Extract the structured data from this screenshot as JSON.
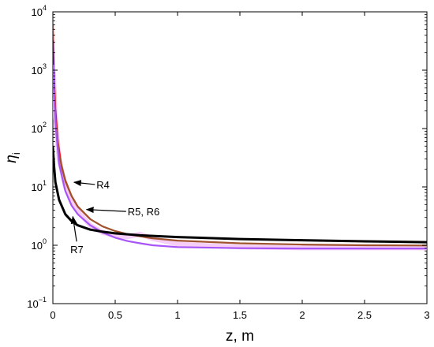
{
  "chart_data": {
    "type": "line",
    "xlabel": "z,  m",
    "ylabel_symbol": "η",
    "ylabel_subscript": "i",
    "xlim": [
      0,
      3
    ],
    "ylim": [
      0.1,
      10000
    ],
    "yscale": "log",
    "grid": false,
    "x_ticks": [
      0,
      0.5,
      1,
      1.5,
      2,
      2.5,
      3
    ],
    "x_tick_labels": [
      "0",
      "0.5",
      "1",
      "1.5",
      "2",
      "2.5",
      "3"
    ],
    "y_ticks": [
      0.1,
      1,
      10,
      100,
      1000,
      10000
    ],
    "y_tick_labels": [
      {
        "base": "10",
        "exp": "−1"
      },
      {
        "base": "10",
        "exp": "0"
      },
      {
        "base": "10",
        "exp": "1"
      },
      {
        "base": "10",
        "exp": "2"
      },
      {
        "base": "10",
        "exp": "3"
      },
      {
        "base": "10",
        "exp": "4"
      }
    ],
    "series": [
      {
        "color": "#f2b8f2",
        "width": 6,
        "opacity": 0.7,
        "x": [
          0.005,
          0.02,
          0.05,
          0.1,
          0.15,
          0.2,
          0.3,
          0.4,
          0.5,
          0.6,
          0.7,
          0.8,
          1.0,
          1.5,
          2.0,
          2.5,
          3.0
        ],
        "y": [
          900,
          150,
          30,
          10,
          5.5,
          3.8,
          2.2,
          1.65,
          1.45,
          1.4,
          1.55,
          1.3,
          1.05,
          0.93,
          0.9,
          0.9,
          0.9
        ]
      },
      {
        "color": "#ff1010",
        "width": 2.2,
        "opacity": 1,
        "x": [
          0.0,
          0.003,
          0.01,
          0.02,
          0.04,
          0.07,
          0.1,
          0.15,
          0.2,
          0.3
        ],
        "y": [
          6000,
          2500,
          700,
          220,
          60,
          22,
          13,
          7,
          4.6,
          2.8
        ]
      },
      {
        "color": "#1c1cf0",
        "width": 2.2,
        "opacity": 1,
        "x": [
          0.0,
          0.003,
          0.01,
          0.02,
          0.04
        ],
        "y": [
          3200,
          1500,
          420,
          150,
          45
        ]
      },
      {
        "color": "#a0522d",
        "width": 2.2,
        "opacity": 1,
        "x": [
          0.01,
          0.02,
          0.05,
          0.1,
          0.15,
          0.2,
          0.3,
          0.4,
          0.5,
          0.6,
          0.7,
          0.8,
          1.0,
          1.5,
          2.0,
          2.5,
          3.0
        ],
        "y": [
          500,
          150,
          35,
          12.5,
          7,
          4.6,
          2.8,
          2.1,
          1.75,
          1.55,
          1.42,
          1.32,
          1.2,
          1.08,
          1.03,
          1.0,
          0.99
        ]
      },
      {
        "color": "#a855f7",
        "width": 2.2,
        "opacity": 1,
        "x": [
          0.005,
          0.01,
          0.02,
          0.05,
          0.1,
          0.15,
          0.2,
          0.3,
          0.4,
          0.5,
          0.6,
          0.7,
          0.8,
          1.0,
          1.5,
          2.0,
          2.5,
          3.0
        ],
        "y": [
          1200,
          400,
          130,
          25,
          8.5,
          4.8,
          3.4,
          2.2,
          1.65,
          1.35,
          1.18,
          1.08,
          1.0,
          0.93,
          0.89,
          0.88,
          0.88,
          0.88
        ]
      },
      {
        "color": "#000000",
        "width": 3,
        "opacity": 1,
        "x": [
          0.0,
          0.005,
          0.01,
          0.02,
          0.05,
          0.1,
          0.15,
          0.2,
          0.3,
          0.4,
          0.5,
          0.7,
          1.0,
          1.5,
          2.0,
          2.5,
          3.0
        ],
        "y": [
          48,
          33,
          22,
          12,
          6,
          3.4,
          2.6,
          2.2,
          1.85,
          1.7,
          1.6,
          1.48,
          1.38,
          1.28,
          1.22,
          1.17,
          1.13
        ]
      }
    ],
    "annotations": [
      {
        "text": "R4",
        "x": 0.35,
        "y": 11,
        "arrow_to": {
          "x": 0.17,
          "y": 12
        }
      },
      {
        "text": "R5, R6",
        "x": 0.6,
        "y": 3.8,
        "arrow_to": {
          "x": 0.27,
          "y": 4.1
        }
      },
      {
        "text": "R7",
        "x": 0.14,
        "y": 0.85,
        "arrow_to": {
          "x": 0.16,
          "y": 3.1
        }
      }
    ]
  }
}
